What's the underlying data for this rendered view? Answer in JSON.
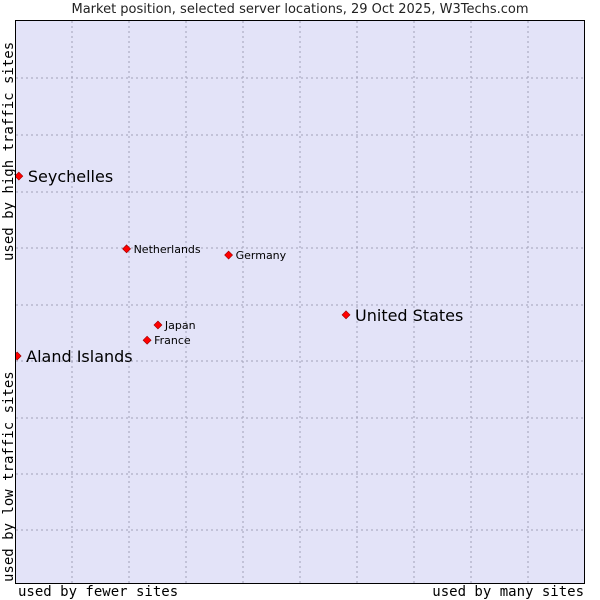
{
  "chart_data": {
    "type": "scatter",
    "title": "Market position, selected server locations, 29 Oct 2025, W3Techs.com",
    "xlabel_low": "used by fewer sites",
    "xlabel_high": "used by many sites",
    "ylabel_low": "used by low traffic sites",
    "ylabel_high": "used by high traffic sites",
    "xlim": [
      0,
      100
    ],
    "ylim": [
      0,
      100
    ],
    "grid": true,
    "point_color": "#ff0000",
    "grid_color": "#a0a0b8",
    "background_color": "#e3e3f8",
    "points": [
      {
        "label": "Seychelles",
        "x": 0.5,
        "y": 72.5,
        "emphasis": "large"
      },
      {
        "label": "Netherlands",
        "x": 19.4,
        "y": 59.6,
        "emphasis": "small"
      },
      {
        "label": "Germany",
        "x": 37.3,
        "y": 58.5,
        "emphasis": "small"
      },
      {
        "label": "United States",
        "x": 57.9,
        "y": 47.9,
        "emphasis": "large"
      },
      {
        "label": "Japan",
        "x": 24.9,
        "y": 46.1,
        "emphasis": "small"
      },
      {
        "label": "France",
        "x": 23.0,
        "y": 43.4,
        "emphasis": "small"
      },
      {
        "label": "Aland Islands",
        "x": 0.2,
        "y": 40.6,
        "emphasis": "large"
      }
    ]
  }
}
